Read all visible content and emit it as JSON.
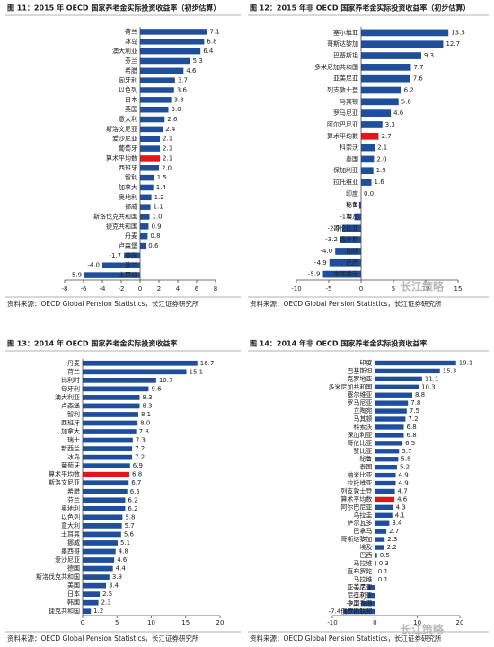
{
  "watermark": "长江策略",
  "chart_data": [
    {
      "type": "bar",
      "orientation": "horizontal",
      "title": "图 11：2015 年 OECD 国家养老金实际投资收益率（初步估算）",
      "source": "资料来源：OECD Global Pension Statistics，长江证券研究所",
      "categories": [
        "荷兰",
        "冰岛",
        "澳大利亚",
        "芬兰",
        "希腊",
        "匈牙利",
        "以色列",
        "日本",
        "英国",
        "意大利",
        "斯洛文尼亚",
        "爱沙尼亚",
        "葡萄牙",
        "算术平均数",
        "西班牙",
        "智利",
        "加拿大",
        "奥地利",
        "挪威",
        "斯洛伐克共和国",
        "捷克共和国",
        "丹麦",
        "卢森堡",
        "美国",
        "波兰",
        "土耳其"
      ],
      "values": [
        7.1,
        6.8,
        6.4,
        5.3,
        4.6,
        3.7,
        3.6,
        3.3,
        3.0,
        2.6,
        2.4,
        2.1,
        2.1,
        2.1,
        2.0,
        1.5,
        1.4,
        1.2,
        1.1,
        1.0,
        0.9,
        0.8,
        0.6,
        -1.7,
        -4.0,
        -5.9
      ],
      "value_labels": [
        "7.1",
        "6.8",
        "6.4",
        "5.3",
        "4.6",
        "3.7",
        "3.6",
        "3.3",
        "3.0",
        "2.6",
        "2.4",
        "2.1",
        "2.1",
        "2.1",
        "2.0",
        "1.5",
        "1.4",
        "1.2",
        "1.1",
        "1.0",
        "0.9",
        "0.8",
        "0.6",
        "-1.7",
        "-4.0",
        "-5.9"
      ],
      "color": "#1f4f9c",
      "highlight_index": 13,
      "highlight_color": "#e3141c",
      "xlim": [
        -8,
        8
      ],
      "xticks": [
        -8,
        -6,
        -4,
        -2,
        0,
        2,
        4,
        6,
        8
      ]
    },
    {
      "type": "bar",
      "orientation": "horizontal",
      "title": "图 12：2015 年非 OECD 国家养老金实际投资收益率（初步估算）",
      "source": "资料来源：OECD Global Pension Statistics，长江证券研究所",
      "categories": [
        "塞尔维亚",
        "哥斯达黎加",
        "巴基斯坦",
        "多米尼加共和国",
        "亚美尼亚",
        "列支敦士登",
        "马其顿",
        "罗马尼亚",
        "阿尔巴尼亚",
        "算术平均数",
        "科索沃",
        "泰国",
        "保加利亚",
        "拉托维亚",
        "印度",
        "秘鲁",
        "埃及",
        "哥伦比亚",
        "俄罗斯",
        "加纳",
        "巴西",
        "中国香港"
      ],
      "values": [
        13.5,
        12.7,
        9.3,
        7.7,
        7.6,
        6.2,
        5.8,
        4.6,
        3.3,
        2.7,
        2.1,
        2.0,
        1.9,
        1.6,
        0.0,
        -0.3,
        -1.0,
        -2.9,
        -3.2,
        -4.0,
        -4.9,
        -5.9
      ],
      "value_labels": [
        "13.5",
        "12.7",
        "9.3",
        "7.7",
        "7.6",
        "6.2",
        "5.8",
        "4.6",
        "3.3",
        "2.7",
        "2.1",
        "2.0",
        "1.9",
        "1.6",
        "0.0",
        "-0.3",
        "-1.0",
        "-2.9",
        "-3.2",
        "-4.0",
        "-4.9",
        "-5.9"
      ],
      "color": "#1f4f9c",
      "highlight_index": 9,
      "highlight_color": "#e3141c",
      "xlim": [
        -10,
        15
      ],
      "xticks": [
        -10,
        -5,
        0,
        5,
        10,
        15
      ]
    },
    {
      "type": "bar",
      "orientation": "horizontal",
      "title": "图 13：2014 年 OECD 国家养老金实际投资收益率",
      "source": "资料来源：OECD Global Pension Statistics，长江证券研究所",
      "categories": [
        "丹麦",
        "荷兰",
        "比利时",
        "匈牙利",
        "澳大利亚",
        "卢森堡",
        "智利",
        "西班牙",
        "加拿大",
        "瑞士",
        "新西兰",
        "冰岛",
        "葡萄牙",
        "算术平均数",
        "斯洛文尼亚",
        "希腊",
        "芬兰",
        "奥地利",
        "以色列",
        "意大利",
        "土耳其",
        "挪威",
        "墨西哥",
        "爱沙尼亚",
        "德国",
        "斯洛伐克共和国",
        "美国",
        "日本",
        "韩国",
        "捷克共和国"
      ],
      "values": [
        16.7,
        15.1,
        10.7,
        9.6,
        8.3,
        8.3,
        8.1,
        8.0,
        7.8,
        7.3,
        7.2,
        7.2,
        6.9,
        6.8,
        6.7,
        6.5,
        6.2,
        6.2,
        5.8,
        5.7,
        5.6,
        5.1,
        4.8,
        4.6,
        4.4,
        3.9,
        3.4,
        2.5,
        2.3,
        1.2
      ],
      "value_labels": [
        "16.7",
        "15.1",
        "10.7",
        "9.6",
        "8.3",
        "8.3",
        "8.1",
        "8.0",
        "7.8",
        "7.3",
        "7.2",
        "7.2",
        "6.9",
        "6.8",
        "6.7",
        "6.5",
        "6.2",
        "6.2",
        "5.8",
        "5.7",
        "5.6",
        "5.1",
        "4.8",
        "4.6",
        "4.4",
        "3.9",
        "3.4",
        "2.5",
        "2.3",
        "1.2"
      ],
      "color": "#1f4f9c",
      "highlight_index": 13,
      "highlight_color": "#e3141c",
      "xlim": [
        0,
        20
      ],
      "xticks": [
        0,
        5,
        10,
        15,
        20
      ]
    },
    {
      "type": "bar",
      "orientation": "horizontal",
      "title": "图 14：2014 年非 OECD 国家养老金实际投资收益率",
      "source": "资料来源：OECD Global Pension Statistics，长江证券研究所",
      "categories": [
        "印度",
        "巴基斯坦",
        "克罗地亚",
        "多米尼加共和国",
        "塞尔维亚",
        "罗马尼亚",
        "立陶宛",
        "马其顿",
        "科索沃",
        "保加利亚",
        "哥伦比亚",
        "赞比亚",
        "秘鲁",
        "泰国",
        "纳米比亚",
        "拉托维亚",
        "列支敦士登",
        "算术平均数",
        "阿尔巴尼亚",
        "乌拉圭",
        "萨尔瓦多",
        "巴拿马",
        "哥斯达黎加",
        "埃及",
        "巴西",
        "马拉维",
        "直布罗陀",
        "马拉维",
        "亚美尼亚",
        "尼日利亚",
        "中国香港",
        "俄罗斯联邦"
      ],
      "values": [
        19.1,
        15.3,
        11.1,
        10.3,
        8.8,
        7.8,
        7.5,
        7.2,
        6.8,
        6.8,
        6.5,
        5.7,
        5.5,
        5.2,
        4.9,
        4.9,
        4.7,
        4.6,
        4.3,
        4.1,
        3.4,
        2.7,
        2.3,
        2.2,
        0.5,
        0.3,
        0.1,
        0.1,
        -1.7,
        -1.7,
        -3.2,
        -7.4
      ],
      "color": "#1f4f9c",
      "highlight_index": 17,
      "highlight_color": "#e3141c",
      "xlim": [
        -10,
        20
      ],
      "xticks": [
        -10,
        0,
        10,
        20
      ]
    }
  ]
}
